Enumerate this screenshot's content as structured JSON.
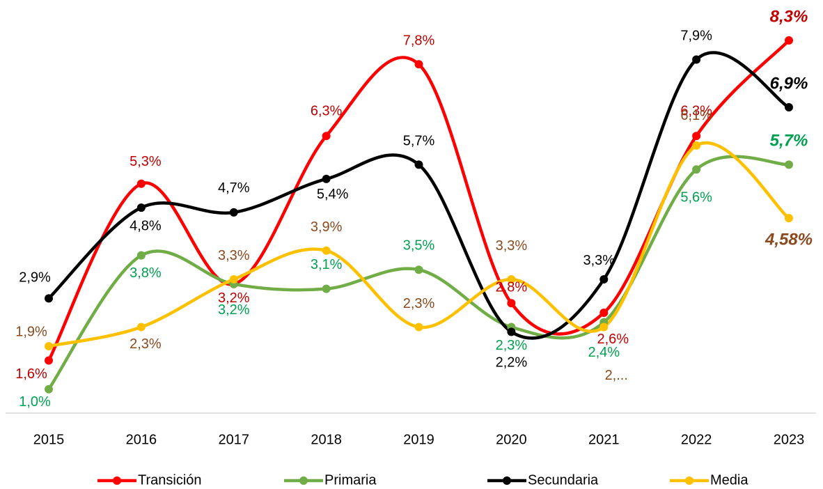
{
  "chart_data": {
    "type": "line",
    "smooth": true,
    "categories": [
      "2015",
      "2016",
      "2017",
      "2018",
      "2019",
      "2020",
      "2021",
      "2022",
      "2023"
    ],
    "ylim": [
      0.5,
      9
    ],
    "legend": "bottom",
    "series": [
      {
        "name": "Transición",
        "color": "#ff0000",
        "label_color": "#c00000",
        "values": [
          1.6,
          5.3,
          3.2,
          6.3,
          7.8,
          2.8,
          2.6,
          6.3,
          8.3
        ],
        "value_labels": [
          "1,6%",
          "5,3%",
          "3,2%",
          "6,3%",
          "7,8%",
          "2,8%",
          "2,6%",
          "6,3%",
          "8,3%"
        ]
      },
      {
        "name": "Primaria",
        "color": "#70ad47",
        "label_color": "#00a050",
        "values": [
          1.0,
          3.8,
          3.2,
          3.1,
          3.5,
          2.3,
          2.4,
          5.6,
          5.7
        ],
        "value_labels": [
          "1,0%",
          "3,8%",
          "3,2%",
          "3,1%",
          "3,5%",
          "2,3%",
          "2,4%",
          "5,6%",
          "5,7%"
        ]
      },
      {
        "name": "Secundaria",
        "color": "#000000",
        "label_color": "#000000",
        "values": [
          2.9,
          4.8,
          4.7,
          5.4,
          5.7,
          2.2,
          3.3,
          7.9,
          6.9
        ],
        "value_labels": [
          "2,9%",
          "4,8%",
          "4,7%",
          "5,4%",
          "5,7%",
          "2,2%",
          "3,3%",
          "7,9%",
          "6,9%"
        ]
      },
      {
        "name": "Media",
        "color": "#ffc000",
        "label_color": "#8b4a1e",
        "values": [
          1.9,
          2.3,
          3.3,
          3.9,
          2.3,
          3.3,
          2.3,
          6.1,
          4.58
        ],
        "value_labels": [
          "1,9%",
          "2,3%",
          "3,3%",
          "3,9%",
          "2,3%",
          "3,3%",
          "2,...",
          "6,1%",
          "4,58%"
        ]
      }
    ]
  }
}
